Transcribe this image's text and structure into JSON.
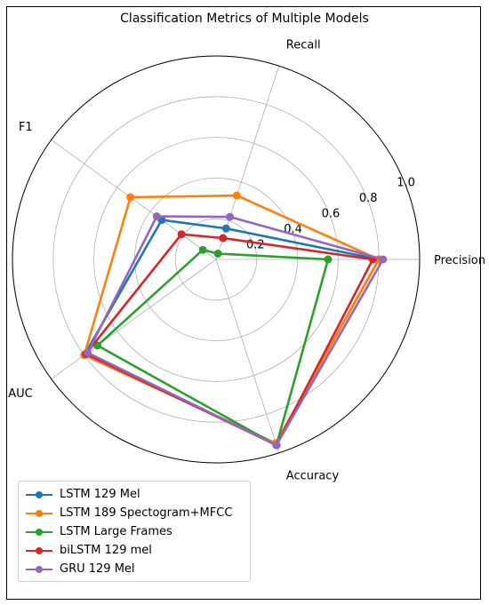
{
  "chart_data": {
    "type": "radar",
    "title": "Classification Metrics of Multiple Models",
    "axes": [
      "Precision",
      "Recall",
      "F1",
      "AUC",
      "Accuracy"
    ],
    "radial_ticks": [
      "0.2",
      "0.4",
      "0.6",
      "0.8",
      "1.0"
    ],
    "rlim": [
      0,
      1.0
    ],
    "grid": true,
    "legend_position": "lower-left",
    "series": [
      {
        "name": "LSTM 129 Mel",
        "color": "#1f77b4",
        "values": [
          0.8,
          0.16,
          0.33,
          0.8,
          0.95
        ]
      },
      {
        "name": "LSTM 189 Spectogram+MFCC",
        "color": "#ff7f0e",
        "values": [
          0.8,
          0.33,
          0.52,
          0.8,
          0.95
        ]
      },
      {
        "name": "LSTM Large Frames",
        "color": "#2ca02c",
        "values": [
          0.55,
          0.03,
          0.08,
          0.72,
          0.96
        ]
      },
      {
        "name": "biLSTM 129 mel",
        "color": "#d62728",
        "values": [
          0.77,
          0.11,
          0.21,
          0.79,
          0.96
        ]
      },
      {
        "name": "GRU 129 Mel",
        "color": "#9467bd",
        "values": [
          0.82,
          0.22,
          0.36,
          0.78,
          0.96
        ]
      }
    ]
  }
}
